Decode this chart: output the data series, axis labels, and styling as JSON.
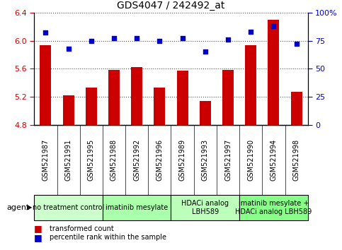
{
  "title": "GDS4047 / 242492_at",
  "samples": [
    "GSM521987",
    "GSM521991",
    "GSM521995",
    "GSM521988",
    "GSM521992",
    "GSM521996",
    "GSM521989",
    "GSM521993",
    "GSM521997",
    "GSM521990",
    "GSM521994",
    "GSM521998"
  ],
  "transformed_count": [
    5.93,
    5.22,
    5.33,
    5.58,
    5.62,
    5.33,
    5.57,
    5.14,
    5.58,
    5.93,
    6.3,
    5.27
  ],
  "percentile_rank": [
    82,
    68,
    75,
    77,
    77,
    75,
    77,
    65,
    76,
    83,
    88,
    72
  ],
  "groups": [
    {
      "label": "no treatment control",
      "start": 0,
      "end": 3,
      "color": "#ccffcc"
    },
    {
      "label": "imatinib mesylate",
      "start": 3,
      "end": 6,
      "color": "#aaffaa"
    },
    {
      "label": "HDACi analog\nLBH589",
      "start": 6,
      "end": 9,
      "color": "#bbffbb"
    },
    {
      "label": "imatinib mesylate +\nHDACi analog LBH589",
      "start": 9,
      "end": 12,
      "color": "#88ff88"
    }
  ],
  "ylim_left": [
    4.8,
    6.4
  ],
  "ylim_right": [
    0,
    100
  ],
  "bar_color": "#cc0000",
  "dot_color": "#0000cc",
  "bar_width": 0.5,
  "grid_color": "#555555",
  "tick_color_left": "#cc0000",
  "tick_color_right": "#0000cc",
  "background_plot": "#ffffff",
  "xtick_bg_color": "#cccccc",
  "left_yticks": [
    4.8,
    5.2,
    5.6,
    6.0,
    6.4
  ],
  "right_yticks": [
    0,
    25,
    50,
    75,
    100
  ],
  "title_fontsize": 10,
  "sample_fontsize": 7,
  "group_fontsize": 7,
  "legend_fontsize": 7,
  "agent_fontsize": 8,
  "ytick_fontsize": 8
}
